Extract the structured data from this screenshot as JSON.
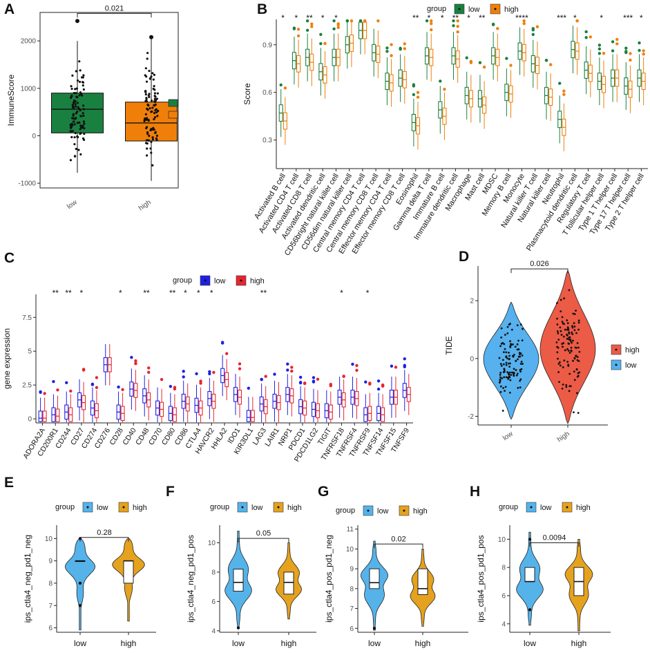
{
  "chart_data": [
    {
      "panel": "A",
      "type": "box",
      "ylabel": "ImmuneScore",
      "categories": [
        "low",
        "high"
      ],
      "colors": {
        "low": "#1a8040",
        "high": "#f07f0a"
      },
      "yticks": [
        -1000,
        0,
        1000,
        2000
      ],
      "ylim": [
        -1100,
        2600
      ],
      "boxes": [
        {
          "group": "low",
          "q1": 60,
          "median": 560,
          "q3": 900,
          "whisker_low": -780,
          "whisker_high": 2000,
          "outliers": [
            2420
          ]
        },
        {
          "group": "high",
          "q1": -110,
          "median": 270,
          "q3": 710,
          "whisker_low": -950,
          "whisker_high": 2050,
          "outliers": [
            2080
          ]
        }
      ],
      "comparison": {
        "label": "0.021",
        "y": 2580
      }
    },
    {
      "panel": "B",
      "type": "box",
      "ylabel": "Score",
      "legend_title": "group",
      "legend": [
        "low",
        "high"
      ],
      "colors": {
        "low": "#1a8040",
        "high": "#f07f0a"
      },
      "yticks": [
        0.3,
        0.6,
        0.9
      ],
      "ylim": [
        0.12,
        1.06
      ],
      "categories": [
        "Activated B cell",
        "Activated CD4 T cell",
        "Activated CD8 T cell",
        "Activated dendritic cell",
        "CD56bright natural killer cell",
        "CD56dim natural killer cell",
        "Central memory CD4 T cell",
        "Central memory CD8 T cell",
        "Effector memory CD4 T cell",
        "Effector memory CD8 T cell",
        "Eosinophil",
        "Gamma delta T cell",
        "Immature B cell",
        "Immature dendritic cell",
        "Macrophage",
        "Mast cell",
        "MDSC",
        "Memory B cell",
        "Monocyte",
        "Natural killer T cell",
        "Natural killer cell",
        "Neutrophil",
        "Plasmacytoid dendritic cell",
        "Regulatory T cell",
        "T follicular helper cell",
        "Type 1 T helper cell",
        "Type 17 T helper cell",
        "Type 2 T helper cell"
      ],
      "significance": [
        "*",
        "*",
        "**",
        "*",
        "*",
        "",
        "",
        "",
        "",
        "",
        "**",
        "*",
        "*",
        "**",
        "*",
        "**",
        "",
        "",
        "****",
        "",
        "",
        "***",
        "*",
        "",
        "*",
        "",
        "***",
        "*"
      ],
      "series": [
        {
          "name": "low",
          "medians": [
            0.47,
            0.8,
            0.82,
            0.73,
            0.82,
            0.9,
            0.99,
            0.85,
            0.67,
            0.69,
            0.41,
            0.83,
            0.49,
            0.83,
            0.58,
            0.56,
            0.83,
            0.6,
            0.86,
            0.78,
            0.58,
            0.43,
            0.87,
            0.74,
            0.67,
            0.69,
            0.64,
            0.69
          ]
        },
        {
          "name": "high",
          "medians": [
            0.42,
            0.78,
            0.79,
            0.71,
            0.82,
            0.91,
            0.99,
            0.84,
            0.66,
            0.68,
            0.39,
            0.82,
            0.45,
            0.81,
            0.56,
            0.52,
            0.82,
            0.59,
            0.85,
            0.77,
            0.57,
            0.38,
            0.86,
            0.72,
            0.65,
            0.69,
            0.62,
            0.67
          ]
        }
      ]
    },
    {
      "panel": "C",
      "type": "box",
      "ylabel": "gene expression",
      "legend_title": "group",
      "legend": [
        "low",
        "high"
      ],
      "colors": {
        "low": "#1f1fe6",
        "high": "#e6262e"
      },
      "yticks": [
        0.0,
        2.5,
        5.0,
        7.5
      ],
      "ylim": [
        -0.3,
        9.2
      ],
      "categories": [
        "ADORA2A",
        "CD200R1",
        "CD244",
        "CD27",
        "CD274",
        "CD276",
        "CD28",
        "CD40",
        "CD48",
        "CD70",
        "CD80",
        "CD86",
        "CTLA4",
        "HAVCR2",
        "HHLA2",
        "IDO1",
        "KIR3DL1",
        "LAG3",
        "LAIR1",
        "NRP1",
        "PDCD1",
        "PDCD1LG2",
        "TIGIT",
        "TNFRSF18",
        "TNFRSF4",
        "TNFRSF9",
        "TNFSF14",
        "TNFSF15",
        "TNFSF9"
      ],
      "significance": [
        "",
        "**",
        "**",
        "*",
        "",
        "",
        "*",
        "",
        "**",
        "",
        "**",
        "*",
        "*",
        "*",
        "",
        "",
        "",
        "**",
        "",
        "",
        "",
        "",
        "",
        "*",
        "",
        "*",
        "",
        "",
        ""
      ],
      "series": [
        {
          "name": "low",
          "medians": [
            0.05,
            0.3,
            0.5,
            1.4,
            0.8,
            4.0,
            0.5,
            2.2,
            1.7,
            0.8,
            0.4,
            1.3,
            1.0,
            1.5,
            3.2,
            1.8,
            0.1,
            1.1,
            1.3,
            1.8,
            0.9,
            0.7,
            0.6,
            1.6,
            1.6,
            0.3,
            0.4,
            1.6,
            2.1
          ]
        },
        {
          "name": "high",
          "medians": [
            0.05,
            0.2,
            0.3,
            1.2,
            0.6,
            4.0,
            0.4,
            2.1,
            1.4,
            0.7,
            0.3,
            1.1,
            0.8,
            1.3,
            2.9,
            1.6,
            0.1,
            0.9,
            1.2,
            1.7,
            0.8,
            0.6,
            0.5,
            1.4,
            1.5,
            0.4,
            0.3,
            1.6,
            1.8
          ]
        }
      ]
    },
    {
      "panel": "D",
      "type": "violin",
      "ylabel": "TIDE",
      "categories": [
        "low",
        "high"
      ],
      "colors": {
        "low": "#56b1ee",
        "high": "#ec5b46"
      },
      "legend": [
        "high",
        "low"
      ],
      "yticks": [
        -2,
        0,
        2
      ],
      "ylim": [
        -2.3,
        3.2
      ],
      "groups": [
        {
          "name": "low",
          "min": -2.1,
          "max": 1.95,
          "median": 0.0
        },
        {
          "name": "high",
          "min": -2.25,
          "max": 3.05,
          "median": 0.3
        }
      ],
      "comparison": {
        "label": "0.026",
        "y": 3.1
      }
    },
    {
      "panel": "E",
      "type": "violin",
      "ylabel": "ips_ctla4_neg_pd1_neg",
      "legend_title": "group",
      "legend": [
        "low",
        "high"
      ],
      "colors": {
        "low": "#55b3ea",
        "high": "#e5a21f"
      },
      "categories": [
        "low",
        "high"
      ],
      "yticks": [
        6,
        7,
        8,
        9,
        10
      ],
      "ylim": [
        5.8,
        10.6
      ],
      "groups": [
        {
          "name": "low",
          "min": 5.9,
          "max": 10.0,
          "q1": 9.0,
          "median": 9.0,
          "q3": 9.0,
          "outliers": [
            8.0,
            7.0,
            10.0
          ]
        },
        {
          "name": "high",
          "min": 6.3,
          "max": 10.0,
          "q1": 8.0,
          "median": 9.0,
          "q3": 9.0
        }
      ],
      "comparison": {
        "label": "0.28",
        "y": 10.05
      }
    },
    {
      "panel": "F",
      "type": "violin",
      "ylabel": "ips_ctla4_neg_pd1_pos",
      "legend_title": "group",
      "legend": [
        "low",
        "high"
      ],
      "colors": {
        "low": "#55b3ea",
        "high": "#e5a21f"
      },
      "categories": [
        "low",
        "high"
      ],
      "yticks": [
        4,
        6,
        8,
        10
      ],
      "ylim": [
        3.9,
        11.2
      ],
      "groups": [
        {
          "name": "low",
          "min": 4.2,
          "max": 10.8,
          "q1": 6.7,
          "median": 7.3,
          "q3": 8.2,
          "outliers": [
            4.2
          ]
        },
        {
          "name": "high",
          "min": 4.8,
          "max": 10.0,
          "q1": 6.5,
          "median": 7.3,
          "q3": 8.0
        }
      ],
      "comparison": {
        "label": "0.05",
        "y": 10.3
      }
    },
    {
      "panel": "G",
      "type": "violin",
      "ylabel": "ips_ctla4_pos_pd1_neg",
      "legend_title": "group",
      "legend": [
        "low",
        "high"
      ],
      "colors": {
        "low": "#55b3ea",
        "high": "#e5a21f"
      },
      "categories": [
        "low",
        "high"
      ],
      "yticks": [
        6,
        7,
        8,
        9,
        10,
        11
      ],
      "ylim": [
        5.8,
        11.2
      ],
      "groups": [
        {
          "name": "low",
          "min": 5.9,
          "max": 10.4,
          "q1": 8.0,
          "median": 8.3,
          "q3": 9.0,
          "outliers": [
            6.0
          ]
        },
        {
          "name": "high",
          "min": 6.1,
          "max": 10.0,
          "q1": 7.7,
          "median": 8.0,
          "q3": 9.0
        }
      ],
      "comparison": {
        "label": "0.02",
        "y": 10.25
      }
    },
    {
      "panel": "H",
      "type": "violin",
      "ylabel": "ips_ctla4_pos_pd1_pos",
      "legend_title": "group",
      "legend": [
        "low",
        "high"
      ],
      "colors": {
        "low": "#55b3ea",
        "high": "#e5a21f"
      },
      "categories": [
        "low",
        "high"
      ],
      "yticks": [
        4,
        6,
        8,
        10
      ],
      "ylim": [
        3.4,
        11.0
      ],
      "groups": [
        {
          "name": "low",
          "min": 3.9,
          "max": 10.5,
          "q1": 7.0,
          "median": 7.0,
          "q3": 8.0,
          "outliers": [
            5.0,
            10.0
          ]
        },
        {
          "name": "high",
          "min": 3.5,
          "max": 10.0,
          "q1": 6.0,
          "median": 7.0,
          "q3": 8.0
        }
      ],
      "comparison": {
        "label": "0.0094",
        "y": 9.75
      }
    }
  ]
}
